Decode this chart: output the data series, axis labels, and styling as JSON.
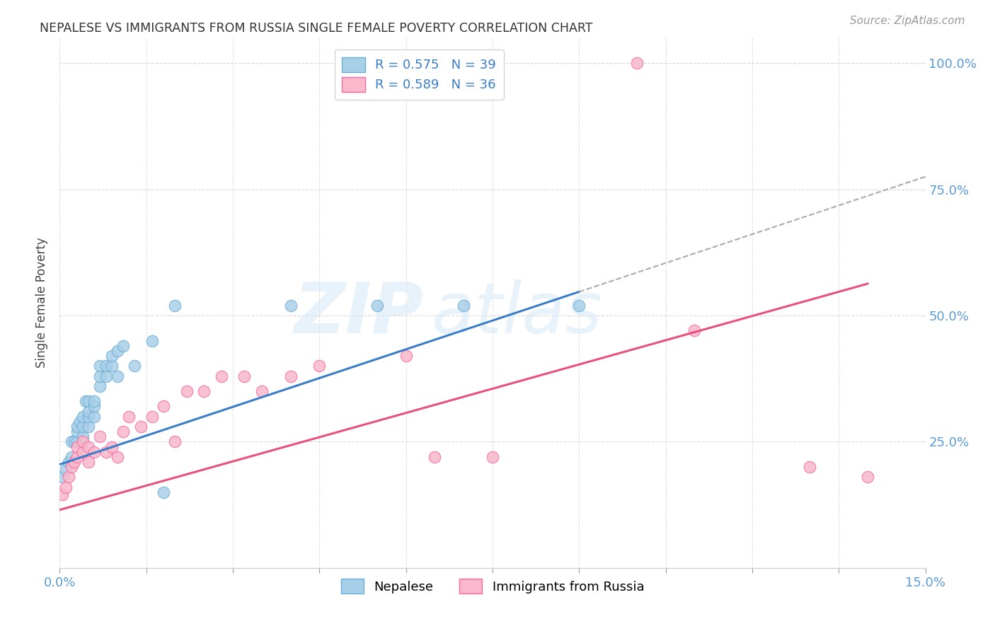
{
  "title": "NEPALESE VS IMMIGRANTS FROM RUSSIA SINGLE FEMALE POVERTY CORRELATION CHART",
  "source": "Source: ZipAtlas.com",
  "ylabel": "Single Female Poverty",
  "xlim": [
    0.0,
    0.15
  ],
  "ylim": [
    0.0,
    1.05
  ],
  "xticks": [
    0.0,
    0.015,
    0.03,
    0.045,
    0.06,
    0.075,
    0.09,
    0.105,
    0.12,
    0.135,
    0.15
  ],
  "ytick_positions": [
    0.0,
    0.25,
    0.5,
    0.75,
    1.0
  ],
  "yticklabels": [
    "",
    "25.0%",
    "50.0%",
    "75.0%",
    "100.0%"
  ],
  "nepalese_color": "#a8cfe8",
  "nepalese_edge_color": "#6baed6",
  "russia_color": "#f9b8cb",
  "russia_edge_color": "#f768a1",
  "trendline_nepalese_color": "#3a7dc9",
  "trendline_russia_color": "#e8527a",
  "watermark_zip": "ZIP",
  "watermark_atlas": "atlas",
  "legend_line1": "R = 0.575   N = 39",
  "legend_line2": "R = 0.589   N = 36",
  "nepalese_x": [
    0.0005,
    0.001,
    0.0015,
    0.002,
    0.002,
    0.0025,
    0.003,
    0.003,
    0.003,
    0.0035,
    0.004,
    0.004,
    0.004,
    0.0045,
    0.005,
    0.005,
    0.005,
    0.005,
    0.006,
    0.006,
    0.006,
    0.007,
    0.007,
    0.007,
    0.008,
    0.008,
    0.009,
    0.009,
    0.01,
    0.01,
    0.011,
    0.013,
    0.016,
    0.018,
    0.02,
    0.04,
    0.055,
    0.07,
    0.09
  ],
  "nepalese_y": [
    0.18,
    0.195,
    0.21,
    0.22,
    0.25,
    0.25,
    0.25,
    0.27,
    0.28,
    0.29,
    0.26,
    0.28,
    0.3,
    0.33,
    0.28,
    0.3,
    0.31,
    0.33,
    0.3,
    0.32,
    0.33,
    0.36,
    0.38,
    0.4,
    0.38,
    0.4,
    0.4,
    0.42,
    0.38,
    0.43,
    0.44,
    0.4,
    0.45,
    0.15,
    0.52,
    0.52,
    0.52,
    0.52,
    0.52
  ],
  "russia_x": [
    0.0005,
    0.001,
    0.0015,
    0.002,
    0.0025,
    0.003,
    0.003,
    0.004,
    0.004,
    0.005,
    0.005,
    0.006,
    0.007,
    0.008,
    0.009,
    0.01,
    0.011,
    0.012,
    0.014,
    0.016,
    0.018,
    0.02,
    0.022,
    0.025,
    0.028,
    0.032,
    0.035,
    0.04,
    0.045,
    0.06,
    0.065,
    0.075,
    0.1,
    0.11,
    0.13,
    0.14
  ],
  "russia_y": [
    0.145,
    0.16,
    0.18,
    0.2,
    0.21,
    0.22,
    0.24,
    0.23,
    0.25,
    0.21,
    0.24,
    0.23,
    0.26,
    0.23,
    0.24,
    0.22,
    0.27,
    0.3,
    0.28,
    0.3,
    0.32,
    0.25,
    0.35,
    0.35,
    0.38,
    0.38,
    0.35,
    0.38,
    0.4,
    0.42,
    0.22,
    0.22,
    1.0,
    0.47,
    0.2,
    0.18
  ],
  "nep_trend_intercept": 0.205,
  "nep_trend_slope": 3.8,
  "rus_trend_intercept": 0.115,
  "rus_trend_slope": 3.2,
  "background_color": "#ffffff",
  "grid_color": "#d8d8d8"
}
